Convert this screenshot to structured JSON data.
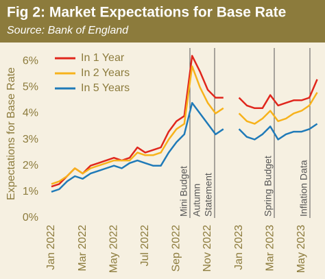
{
  "chart_data": {
    "type": "line",
    "title": "Fig 2: Market Expectations for Base Rate",
    "subtitle": "Source: Bank of England",
    "y_label": "Expectations for Base Rate",
    "categories": [
      "Jan 2022",
      null,
      null,
      null,
      "Mar 2022",
      null,
      null,
      null,
      "May 2022",
      null,
      null,
      null,
      "Jul 2022",
      null,
      null,
      null,
      "Sep 2022",
      null,
      null,
      null,
      "Nov 2022",
      null,
      null,
      null,
      "Jan 2023",
      null,
      null,
      null,
      "Mar 2023",
      null,
      null,
      null,
      "May 2023",
      null,
      null
    ],
    "series": [
      {
        "name": "In 1 Year",
        "color": "#e0261c",
        "values": [
          1.2,
          1.3,
          1.6,
          1.9,
          1.7,
          2.0,
          2.1,
          2.2,
          2.3,
          2.2,
          2.3,
          2.7,
          2.5,
          2.6,
          2.7,
          3.3,
          3.7,
          3.9,
          6.2,
          5.6,
          4.9,
          4.6,
          4.6,
          null,
          4.6,
          4.3,
          4.2,
          4.2,
          4.7,
          4.3,
          4.4,
          4.5,
          4.5,
          4.6,
          5.3
        ]
      },
      {
        "name": "In 2 Years",
        "color": "#f7b21b",
        "values": [
          1.3,
          1.4,
          1.6,
          1.9,
          1.7,
          1.9,
          2.0,
          2.1,
          2.2,
          2.2,
          2.2,
          2.5,
          2.4,
          2.4,
          2.5,
          3.0,
          3.4,
          3.6,
          5.8,
          5.0,
          4.4,
          4.0,
          4.2,
          null,
          4.0,
          3.7,
          3.6,
          3.8,
          4.1,
          3.7,
          3.8,
          4.0,
          4.1,
          4.3,
          4.8
        ]
      },
      {
        "name": "In 5 Years",
        "color": "#1f7ab8",
        "values": [
          1.0,
          1.1,
          1.4,
          1.6,
          1.5,
          1.7,
          1.8,
          1.9,
          2.0,
          1.9,
          2.1,
          2.2,
          2.1,
          2.0,
          2.0,
          2.5,
          2.9,
          3.2,
          4.4,
          4.0,
          3.6,
          3.2,
          3.4,
          null,
          3.4,
          3.1,
          3.0,
          3.2,
          3.5,
          3.0,
          3.2,
          3.3,
          3.3,
          3.4,
          3.6
        ]
      }
    ],
    "annotations": [
      {
        "lines": [
          "Mini Budget"
        ]
      },
      {
        "lines": [
          "Autumn",
          "Statement"
        ]
      },
      {
        "lines": [
          "Spring Budget"
        ]
      },
      {
        "lines": [
          "Inflation Data"
        ]
      }
    ],
    "ylim": [
      0,
      6.5
    ],
    "yticks": [
      {
        "value": 0,
        "label": "0%"
      },
      {
        "value": 1,
        "label": "1%"
      },
      {
        "value": 2,
        "label": "2%"
      },
      {
        "value": 3,
        "label": "3%"
      },
      {
        "value": 4,
        "label": "4%"
      },
      {
        "value": 5,
        "label": "5%"
      },
      {
        "value": 6,
        "label": "6%"
      }
    ],
    "legend": "top-left"
  }
}
